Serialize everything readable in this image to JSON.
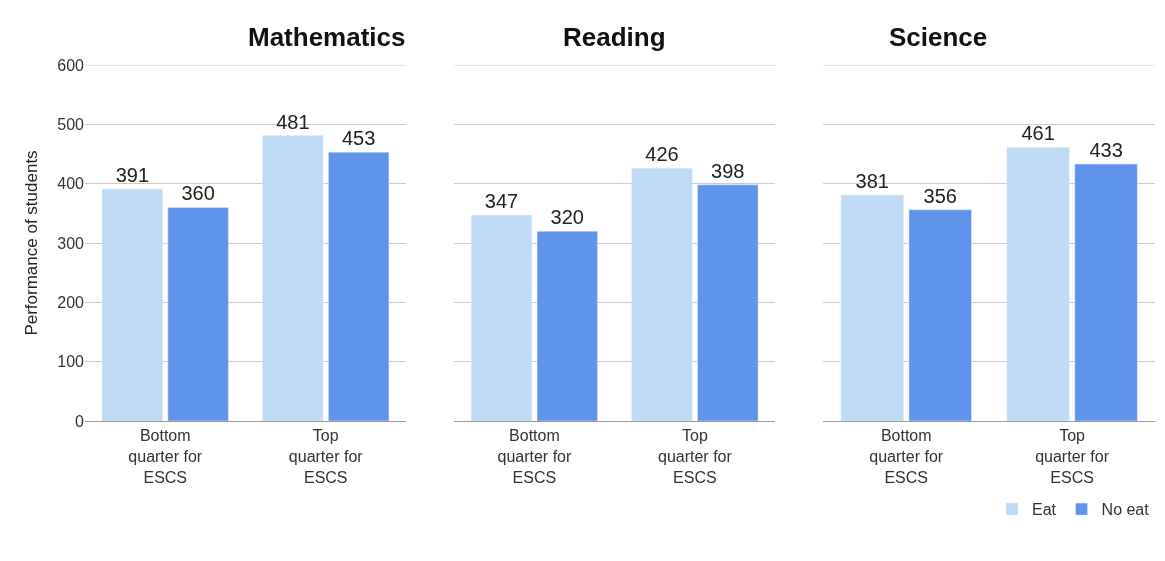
{
  "chart_data": [
    {
      "type": "bar",
      "title": "Mathematics",
      "ylabel": "Performance of students",
      "categories": [
        "Bottom\nquarter for\nESCS",
        "Top\nquarter for\nESCS"
      ],
      "series": [
        {
          "color": "#bfdaf5",
          "values": [
            391,
            481
          ]
        },
        {
          "color": "#6094ea",
          "values": [
            360,
            453
          ]
        }
      ],
      "ylim": [
        0,
        600
      ],
      "yticks": [
        0,
        100,
        200,
        300,
        400,
        500,
        600
      ],
      "grid": "y",
      "data_labels": true
    },
    {
      "type": "bar",
      "title": "Reading",
      "categories": [
        "Bottom\nquarter for\nESCS",
        "Top\nquarter for\nESCS"
      ],
      "series": [
        {
          "color": "#bfdaf5",
          "values": [
            347,
            426
          ]
        },
        {
          "color": "#6094ea",
          "values": [
            320,
            398
          ]
        }
      ],
      "ylim": [
        0,
        600
      ],
      "yticks": [
        0,
        100,
        200,
        300,
        400,
        500,
        600
      ],
      "grid": "y",
      "data_labels": true,
      "tick_labels": "x"
    },
    {
      "type": "bar",
      "title": "Science",
      "categories": [
        "Bottom\nquarter for\nESCS",
        "Top\nquarter for\nESCS"
      ],
      "series": [
        {
          "name": "Eat",
          "color": "#bfdaf5",
          "values": [
            381,
            461
          ]
        },
        {
          "name": "No eat",
          "color": "#6094ea",
          "values": [
            356,
            433
          ]
        }
      ],
      "ylim": [
        0,
        600
      ],
      "yticks": [
        0,
        100,
        200,
        300,
        400,
        500,
        600
      ],
      "grid": "y",
      "data_labels": true,
      "legend": "bottom right",
      "tick_labels": "x"
    }
  ]
}
